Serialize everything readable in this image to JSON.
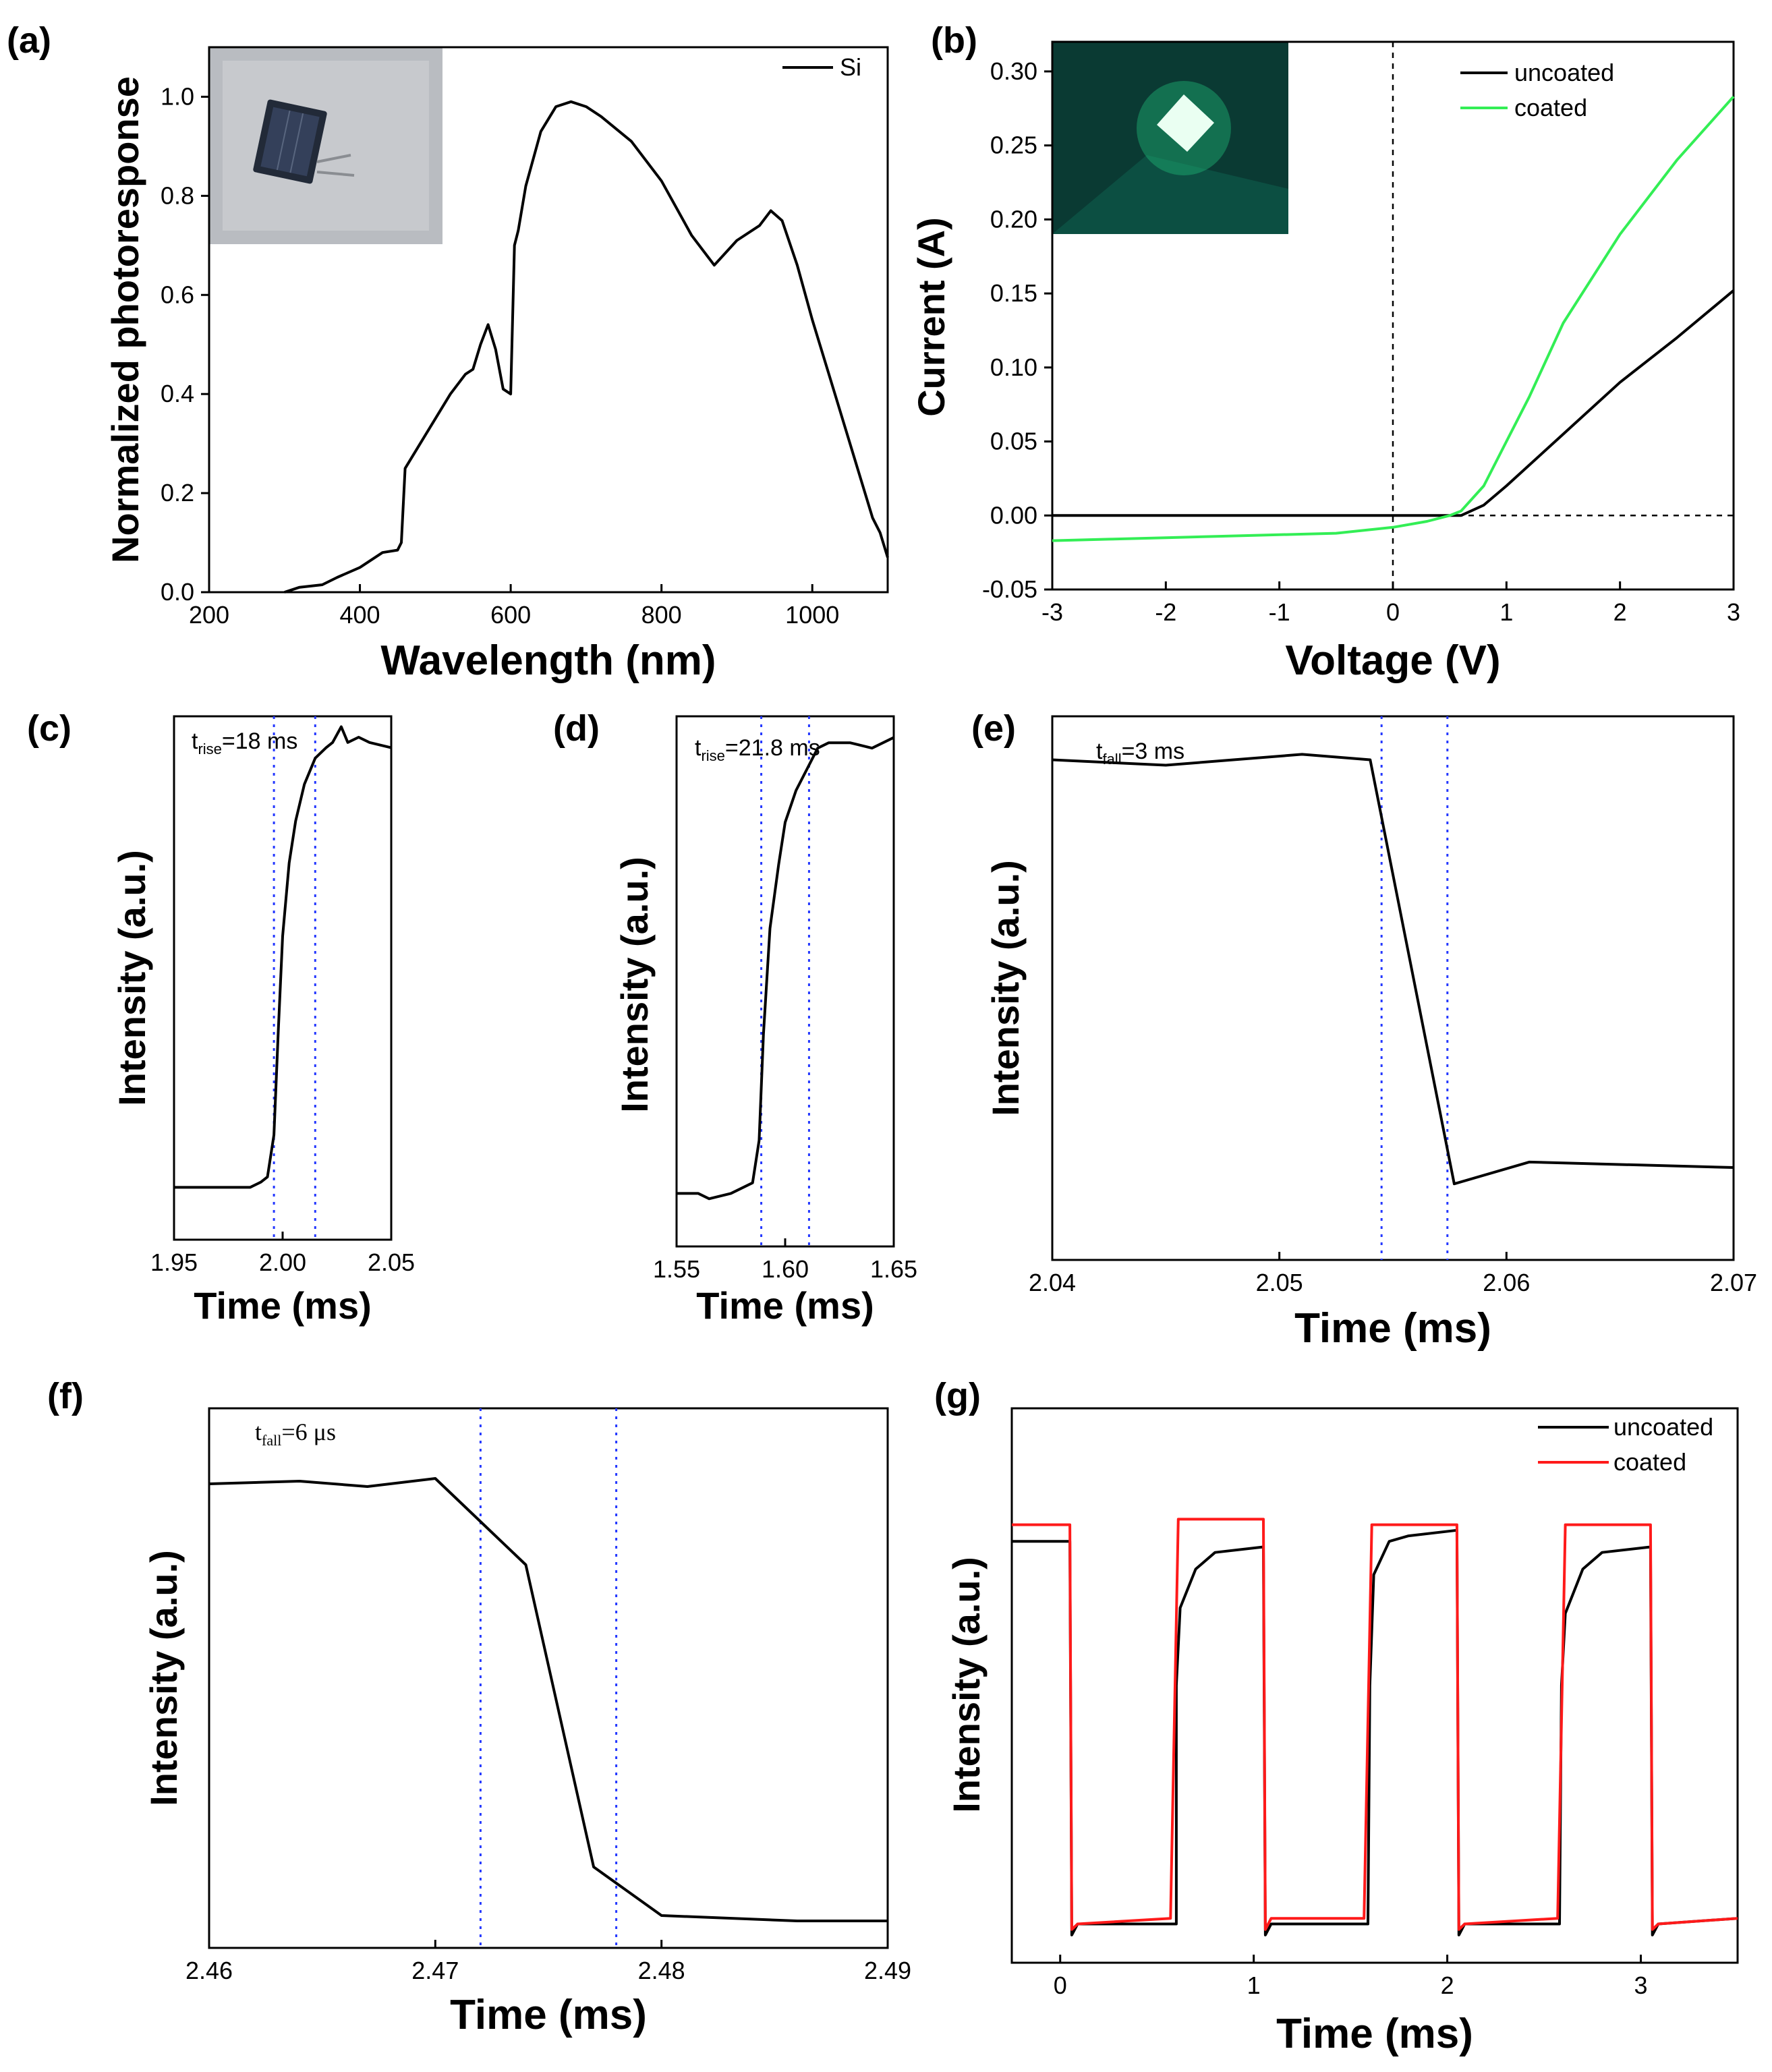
{
  "colors": {
    "black": "#000000",
    "green": "#33ee55",
    "red": "#ff1a1a",
    "blue_marker": "#2438ff"
  },
  "panels": {
    "a": {
      "label": "(a)"
    },
    "b": {
      "label": "(b)"
    },
    "c": {
      "label": "(c)"
    },
    "d": {
      "label": "(d)"
    },
    "e": {
      "label": "(e)"
    },
    "f": {
      "label": "(f)"
    },
    "g": {
      "label": "(g)"
    }
  },
  "chart_data": [
    {
      "id": "a",
      "type": "line",
      "title": "",
      "xlabel": "Wavelength (nm)",
      "ylabel": "Normalized photoresponse",
      "xlim": [
        200,
        1100
      ],
      "ylim": [
        0,
        1.1
      ],
      "xticks": [
        200,
        400,
        600,
        800,
        1000
      ],
      "xtick_labels": [
        "200",
        "400",
        "600",
        "800",
        "1000"
      ],
      "yticks": [
        0.0,
        0.2,
        0.4,
        0.6,
        0.8,
        1.0
      ],
      "ytick_labels": [
        "0.0",
        "0.2",
        "0.4",
        "0.6",
        "0.8",
        "1.0"
      ],
      "legend": [
        "Si"
      ],
      "inset": "photo of Si photodetector chip",
      "series": [
        {
          "name": "Si",
          "color": "#000000",
          "x": [
            300,
            320,
            350,
            370,
            400,
            430,
            450,
            455,
            460,
            480,
            500,
            520,
            540,
            550,
            560,
            570,
            580,
            590,
            600,
            605,
            610,
            620,
            640,
            660,
            680,
            700,
            720,
            760,
            800,
            840,
            870,
            900,
            930,
            945,
            960,
            980,
            1000,
            1030,
            1060,
            1080,
            1090,
            1100
          ],
          "y": [
            0.0,
            0.01,
            0.015,
            0.03,
            0.05,
            0.08,
            0.085,
            0.1,
            0.25,
            0.3,
            0.35,
            0.4,
            0.44,
            0.45,
            0.5,
            0.54,
            0.49,
            0.41,
            0.4,
            0.7,
            0.73,
            0.82,
            0.93,
            0.98,
            0.99,
            0.98,
            0.96,
            0.91,
            0.83,
            0.72,
            0.66,
            0.71,
            0.74,
            0.77,
            0.75,
            0.66,
            0.55,
            0.4,
            0.25,
            0.15,
            0.12,
            0.07
          ]
        }
      ]
    },
    {
      "id": "b",
      "type": "line",
      "title": "",
      "xlabel": "Voltage (V)",
      "ylabel": "Current (A)",
      "xlim": [
        -3,
        3
      ],
      "ylim": [
        -0.05,
        0.32
      ],
      "xticks": [
        -3,
        -2,
        -1,
        0,
        1,
        2,
        3
      ],
      "xtick_labels": [
        "-3",
        "-2",
        "-1",
        "0",
        "1",
        "2",
        "3"
      ],
      "yticks": [
        -0.05,
        0.0,
        0.05,
        0.1,
        0.15,
        0.2,
        0.25,
        0.3
      ],
      "ytick_labels": [
        "-0.05",
        "0.00",
        "0.05",
        "0.10",
        "0.15",
        "0.20",
        "0.25",
        "0.30"
      ],
      "legend": [
        "uncoated",
        "coated"
      ],
      "inset": "photo of green-emitting coated chip",
      "series": [
        {
          "name": "uncoated",
          "color": "#000000",
          "x": [
            -3,
            -2,
            -1,
            0,
            0.4,
            0.6,
            0.8,
            1.0,
            1.5,
            2.0,
            2.5,
            3.0
          ],
          "y": [
            0.0,
            0.0,
            0.0,
            0.0,
            0.0,
            0.0,
            0.007,
            0.02,
            0.055,
            0.09,
            0.12,
            0.152
          ]
        },
        {
          "name": "coated",
          "color": "#33ee55",
          "x": [
            -3,
            -2.5,
            -2,
            -1.5,
            -1,
            -0.5,
            0,
            0.3,
            0.5,
            0.6,
            0.8,
            1.0,
            1.2,
            1.5,
            2.0,
            2.5,
            3.0
          ],
          "y": [
            -0.017,
            -0.016,
            -0.015,
            -0.014,
            -0.013,
            -0.012,
            -0.008,
            -0.004,
            0.0,
            0.003,
            0.02,
            0.05,
            0.08,
            0.13,
            0.19,
            0.24,
            0.283
          ]
        }
      ]
    },
    {
      "id": "c",
      "type": "line",
      "title": "",
      "xlabel": "Time (ms)",
      "ylabel": "Intensity (a.u.)",
      "xlim": [
        1.95,
        2.05
      ],
      "ylim": [
        0,
        1
      ],
      "xticks": [
        1.95,
        2.0,
        2.05
      ],
      "xtick_labels": [
        "1.95",
        "2.00",
        "2.05"
      ],
      "annotation": {
        "t": "t",
        "sub": "rise",
        "value": "=18 ms"
      },
      "markers_x": [
        1.996,
        2.015
      ],
      "series": [
        {
          "name": "response",
          "color": "#000000",
          "x": [
            1.95,
            1.985,
            1.99,
            1.993,
            1.996,
            1.998,
            2.0,
            2.003,
            2.006,
            2.01,
            2.015,
            2.02,
            2.023,
            2.027,
            2.03,
            2.035,
            2.04,
            2.05
          ],
          "y": [
            0.1,
            0.1,
            0.11,
            0.12,
            0.2,
            0.4,
            0.58,
            0.72,
            0.8,
            0.87,
            0.92,
            0.94,
            0.95,
            0.98,
            0.95,
            0.96,
            0.95,
            0.94
          ]
        }
      ]
    },
    {
      "id": "d",
      "type": "line",
      "title": "",
      "xlabel": "Time (ms)",
      "ylabel": "Intensity (a.u.)",
      "xlim": [
        1.55,
        1.65
      ],
      "ylim": [
        0,
        1
      ],
      "xticks": [
        1.55,
        1.6,
        1.65
      ],
      "xtick_labels": [
        "1.55",
        "1.60",
        "1.65"
      ],
      "annotation": {
        "t": "t",
        "sub": "rise",
        "value": "=21.8 ms"
      },
      "markers_x": [
        1.589,
        1.611
      ],
      "series": [
        {
          "name": "response",
          "color": "#000000",
          "x": [
            1.55,
            1.56,
            1.565,
            1.575,
            1.585,
            1.588,
            1.59,
            1.593,
            1.597,
            1.6,
            1.605,
            1.61,
            1.615,
            1.62,
            1.63,
            1.64,
            1.65
          ],
          "y": [
            0.1,
            0.1,
            0.09,
            0.1,
            0.12,
            0.2,
            0.4,
            0.6,
            0.72,
            0.8,
            0.86,
            0.9,
            0.94,
            0.95,
            0.95,
            0.94,
            0.96
          ]
        }
      ]
    },
    {
      "id": "e",
      "type": "line",
      "title": "",
      "xlabel": "Time (ms)",
      "ylabel": "Intensity (a.u.)",
      "xlim": [
        2.04,
        2.07
      ],
      "ylim": [
        0,
        1
      ],
      "xticks": [
        2.04,
        2.05,
        2.06,
        2.07
      ],
      "xtick_labels": [
        "2.04",
        "2.05",
        "2.06",
        "2.07"
      ],
      "annotation": {
        "t": "t",
        "sub": "fall",
        "value": "=3 ms"
      },
      "markers_x": [
        2.0545,
        2.0574
      ],
      "series": [
        {
          "name": "response",
          "color": "#000000",
          "x": [
            2.04,
            2.045,
            2.051,
            2.054,
            2.0577,
            2.061,
            2.07
          ],
          "y": [
            0.92,
            0.91,
            0.93,
            0.92,
            0.14,
            0.18,
            0.17
          ]
        }
      ]
    },
    {
      "id": "f",
      "type": "line",
      "title": "",
      "xlabel": "Time (ms)",
      "ylabel": "Intensity (a.u.)",
      "xlim": [
        2.46,
        2.49
      ],
      "ylim": [
        0,
        1
      ],
      "xticks": [
        2.46,
        2.47,
        2.48,
        2.49
      ],
      "xtick_labels": [
        "2.46",
        "2.47",
        "2.48",
        "2.49"
      ],
      "annotation": {
        "t": "t",
        "sub": "fall",
        "value": "=6 μs"
      },
      "markers_x": [
        2.472,
        2.478
      ],
      "series": [
        {
          "name": "response",
          "color": "#000000",
          "x": [
            2.46,
            2.464,
            2.467,
            2.47,
            2.472,
            2.474,
            2.477,
            2.48,
            2.486,
            2.49
          ],
          "y": [
            0.86,
            0.865,
            0.855,
            0.87,
            0.79,
            0.71,
            0.15,
            0.06,
            0.05,
            0.05
          ]
        }
      ]
    },
    {
      "id": "g",
      "type": "line",
      "title": "",
      "xlabel": "Time (ms)",
      "ylabel": "Intensity (a.u.)",
      "xlim": [
        -0.25,
        3.5
      ],
      "ylim": [
        0,
        1
      ],
      "xticks": [
        0,
        1,
        2,
        3
      ],
      "xtick_labels": [
        "0",
        "1",
        "2",
        "3"
      ],
      "legend": [
        "uncoated",
        "coated"
      ],
      "series": [
        {
          "name": "uncoated",
          "color": "#000000",
          "x": [
            -0.25,
            0.05,
            0.06,
            0.09,
            0.6,
            0.6,
            0.62,
            0.7,
            0.8,
            1.05,
            1.06,
            1.09,
            1.59,
            1.6,
            1.62,
            1.7,
            1.8,
            2.05,
            2.06,
            2.09,
            2.58,
            2.59,
            2.61,
            2.7,
            2.8,
            3.05,
            3.06,
            3.09,
            3.5
          ],
          "y": [
            0.76,
            0.76,
            0.05,
            0.07,
            0.07,
            0.5,
            0.64,
            0.71,
            0.74,
            0.75,
            0.05,
            0.07,
            0.07,
            0.5,
            0.7,
            0.76,
            0.77,
            0.78,
            0.05,
            0.07,
            0.07,
            0.5,
            0.63,
            0.71,
            0.74,
            0.75,
            0.05,
            0.07,
            0.08
          ]
        },
        {
          "name": "coated",
          "color": "#ff1a1a",
          "x": [
            -0.25,
            0.05,
            0.06,
            0.09,
            0.57,
            0.61,
            1.05,
            1.06,
            1.09,
            1.57,
            1.61,
            2.05,
            2.06,
            2.09,
            2.57,
            2.61,
            3.05,
            3.06,
            3.09,
            3.5
          ],
          "y": [
            0.79,
            0.79,
            0.06,
            0.07,
            0.08,
            0.8,
            0.8,
            0.06,
            0.08,
            0.08,
            0.79,
            0.79,
            0.06,
            0.07,
            0.08,
            0.79,
            0.79,
            0.06,
            0.07,
            0.08
          ]
        }
      ]
    }
  ]
}
